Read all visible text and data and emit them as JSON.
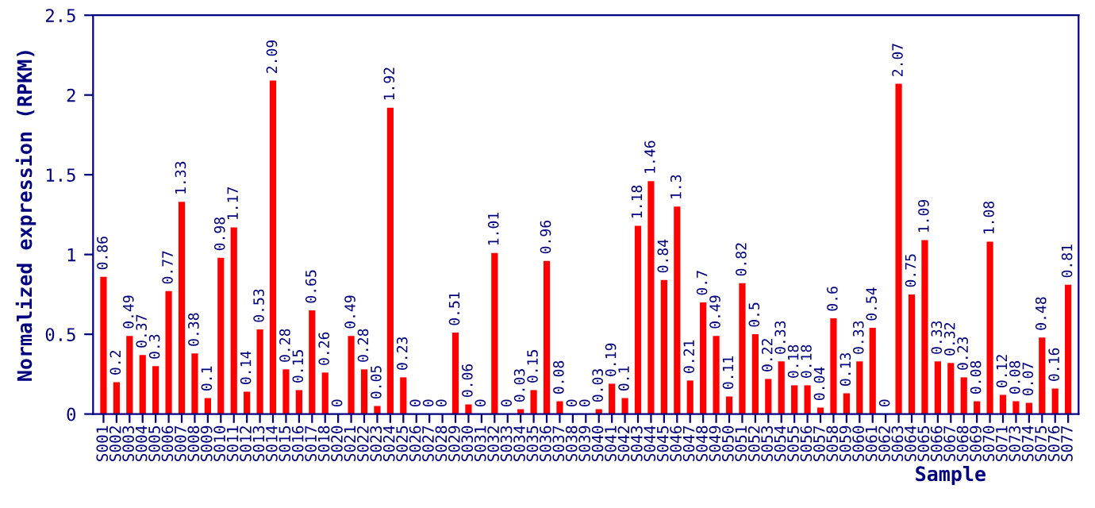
{
  "chart_data": {
    "type": "bar",
    "xlabel": "Sample",
    "ylabel": "Normalized expression (RPKM)",
    "categories": [
      "S001",
      "S002",
      "S003",
      "S004",
      "S005",
      "S006",
      "S007",
      "S008",
      "S009",
      "S010",
      "S011",
      "S012",
      "S013",
      "S014",
      "S015",
      "S016",
      "S017",
      "S018",
      "S020",
      "S021",
      "S022",
      "S023",
      "S024",
      "S025",
      "S026",
      "S027",
      "S028",
      "S029",
      "S030",
      "S031",
      "S032",
      "S033",
      "S034",
      "S035",
      "S036",
      "S037",
      "S038",
      "S039",
      "S040",
      "S041",
      "S042",
      "S043",
      "S044",
      "S045",
      "S046",
      "S047",
      "S048",
      "S049",
      "S050",
      "S051",
      "S052",
      "S053",
      "S054",
      "S055",
      "S056",
      "S057",
      "S058",
      "S059",
      "S060",
      "S061",
      "S062",
      "S063",
      "S064",
      "S065",
      "S066",
      "S067",
      "S068",
      "S069",
      "S070",
      "S071",
      "S073",
      "S074",
      "S075",
      "S076",
      "S077"
    ],
    "values": [
      0.86,
      0.2,
      0.49,
      0.37,
      0.3,
      0.77,
      1.33,
      0.38,
      0.1,
      0.98,
      1.17,
      0.14,
      0.53,
      2.09,
      0.28,
      0.15,
      0.65,
      0.26,
      0,
      0.49,
      0.28,
      0.05,
      1.92,
      0.23,
      0,
      0,
      0,
      0.51,
      0.06,
      0,
      1.01,
      0,
      0.03,
      0.15,
      0.96,
      0.08,
      0,
      0,
      0.03,
      0.19,
      0.1,
      1.18,
      1.46,
      0.84,
      1.3,
      0.21,
      0.7,
      0.49,
      0.11,
      0.82,
      0.5,
      0.22,
      0.33,
      0.18,
      0.18,
      0.04,
      0.6,
      0.13,
      0.33,
      0.54,
      0,
      2.07,
      0.75,
      1.09,
      0.33,
      0.32,
      0.23,
      0.08,
      1.08,
      0.12,
      0.08,
      0.07,
      0.48,
      0.16,
      0.81
    ],
    "color": "#ff0000",
    "ylim": [
      0,
      2.5
    ],
    "yticks": [
      0,
      0.5,
      1,
      1.5,
      2,
      2.5
    ],
    "data_labels": true,
    "grid": false
  }
}
